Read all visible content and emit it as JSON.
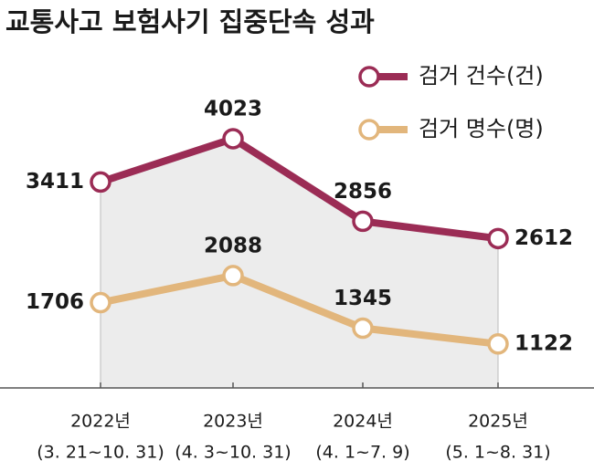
{
  "chart_data": {
    "type": "line",
    "title": "교통사고 보험사기 집중단속 성과",
    "categories": [
      [
        "2022년",
        "(3. 21~10. 31)"
      ],
      [
        "2023년",
        "(4. 3~10. 31)"
      ],
      [
        "2024년",
        "(4. 1~7. 9)"
      ],
      [
        "2025년",
        "(5. 1~8. 31)"
      ]
    ],
    "series": [
      {
        "name": "검거 건수(건)",
        "color": "#9b2c55",
        "values": [
          3411,
          4023,
          2856,
          2612
        ]
      },
      {
        "name": "검거 명수(명)",
        "color": "#e2b67c",
        "values": [
          1706,
          2088,
          1345,
          1122
        ]
      }
    ],
    "ylim": [
      500,
      4500
    ]
  }
}
